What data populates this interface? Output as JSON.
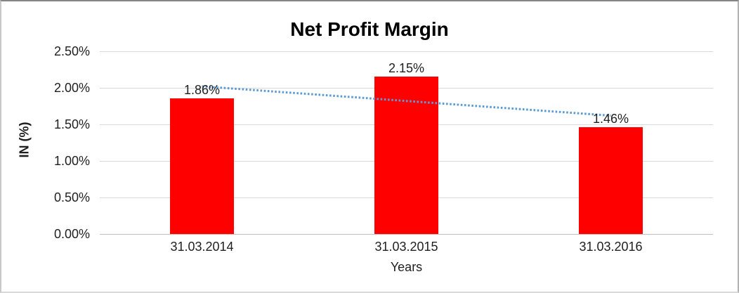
{
  "chart_data": {
    "type": "bar",
    "title": "Net Profit Margin",
    "xlabel": "Years",
    "ylabel": "IN (%)",
    "categories": [
      "31.03.2014",
      "31.03.2015",
      "31.03.2016"
    ],
    "values": [
      1.86,
      2.15,
      1.46
    ],
    "data_labels": [
      "1.86%",
      "2.15%",
      "1.46%"
    ],
    "ylim": [
      0,
      2.5
    ],
    "ytick_step": 0.5,
    "ytick_labels": [
      "0.00%",
      "0.50%",
      "1.00%",
      "1.50%",
      "2.00%",
      "2.50%"
    ],
    "grid": true,
    "legend": "none",
    "trendline": {
      "type": "linear",
      "style": "dotted",
      "start_value": 2.02,
      "end_value": 1.62
    },
    "colors": {
      "bar": "#ff0000",
      "trendline": "#5b9bd5",
      "gridline": "#d9d9d9",
      "axis_line": "#bfbfbf",
      "label_text": "#1f1f1f",
      "title_text": "#000000"
    }
  }
}
